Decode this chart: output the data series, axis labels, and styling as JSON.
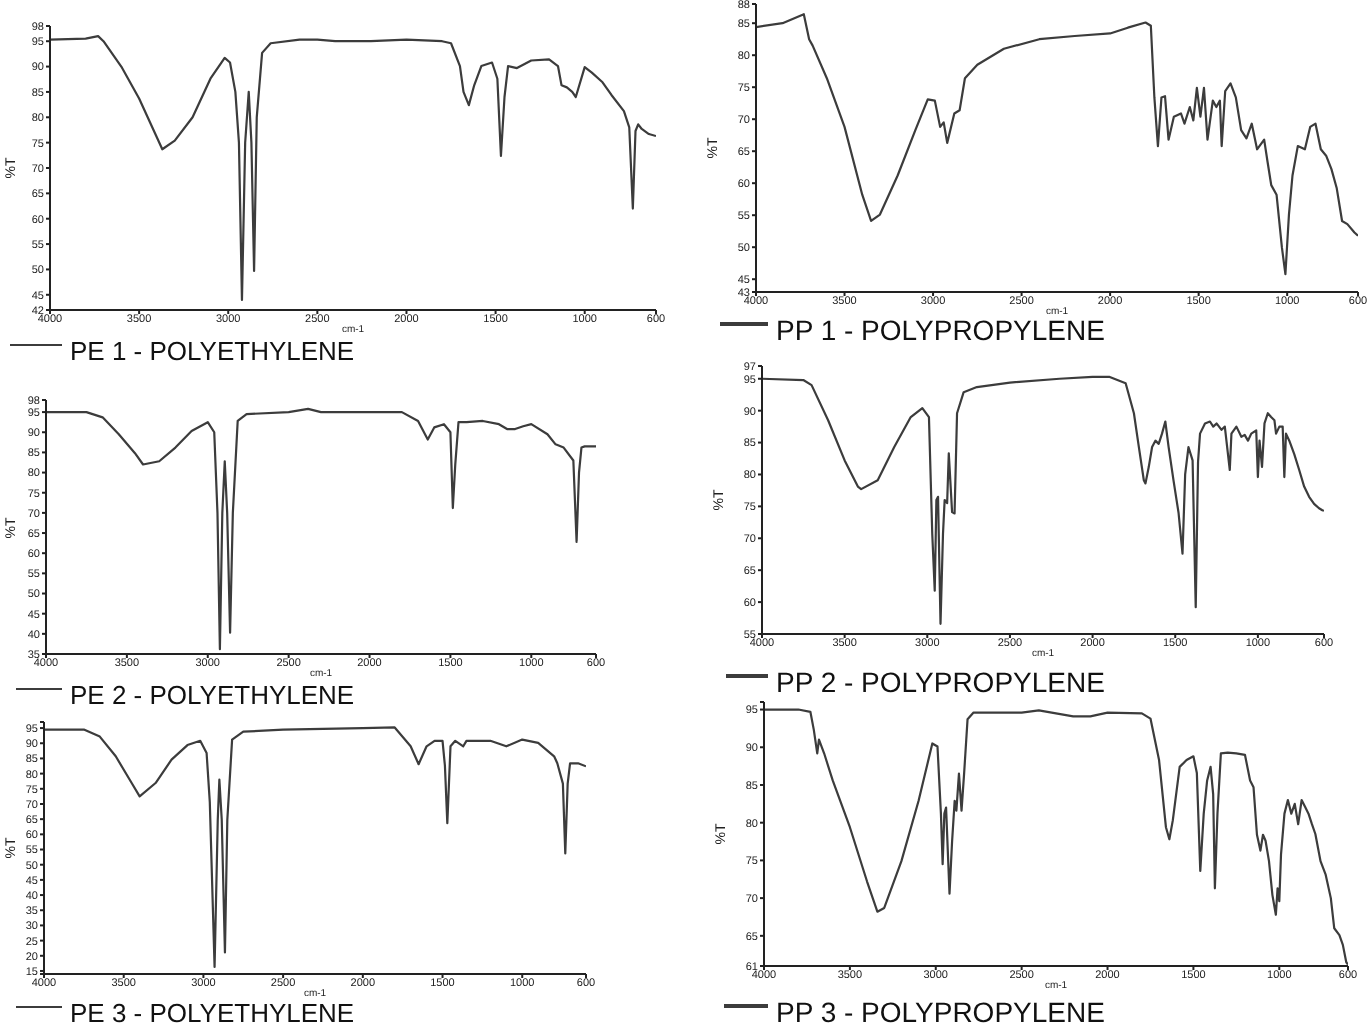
{
  "chart_data": [
    {
      "type": "line",
      "xlabel": "cm-1",
      "ylabel": "%T",
      "legend": "bottom",
      "xlim": [
        4000,
        600
      ],
      "xticks": [
        4000,
        3500,
        3000,
        2500,
        2000,
        1500,
        1000,
        600
      ],
      "ylim": [
        42,
        98
      ],
      "yticks": [
        42,
        45,
        50,
        55,
        60,
        65,
        70,
        75,
        80,
        85,
        90,
        95,
        98
      ],
      "x": [
        4000,
        3800,
        3730,
        3700,
        3600,
        3500,
        3400,
        3370,
        3300,
        3200,
        3100,
        3020,
        2990,
        2960,
        2940,
        2923,
        2905,
        2885,
        2870,
        2855,
        2840,
        2810,
        2762,
        2600,
        2500,
        2400,
        2200,
        2000,
        1800,
        1750,
        1700,
        1680,
        1650,
        1620,
        1580,
        1520,
        1490,
        1470,
        1450,
        1430,
        1380,
        1300,
        1200,
        1150,
        1130,
        1100,
        1070,
        1050,
        1000,
        960,
        900,
        850,
        780,
        750,
        730,
        715,
        700,
        680,
        640,
        600
      ],
      "series": [
        {
          "name": "PE 1 - POLYETHYLENE",
          "color": "#3c3c3c",
          "values": [
            95.3,
            95.5,
            96,
            95,
            90,
            83.7,
            76,
            73.7,
            75.4,
            80,
            87.6,
            91.7,
            90.8,
            85,
            75,
            44,
            75,
            85,
            75,
            49.7,
            80,
            92.7,
            94.6,
            95.3,
            95.3,
            95,
            95,
            95.3,
            95,
            94.6,
            90.1,
            85,
            82.4,
            86.3,
            90.1,
            90.8,
            87.6,
            72.4,
            84,
            90.1,
            89.7,
            91.2,
            91.4,
            90.1,
            86.3,
            85.9,
            85,
            84,
            89.9,
            88.8,
            86.9,
            84.4,
            81.2,
            78,
            62,
            77.3,
            78.6,
            77.7,
            76.7,
            76.3
          ]
        }
      ]
    },
    {
      "type": "line",
      "xlabel": "cm-1",
      "ylabel": "%T",
      "legend": "bottom",
      "xlim": [
        4000,
        600
      ],
      "xticks": [
        4000,
        3500,
        3000,
        2500,
        2000,
        1500,
        1000,
        600
      ],
      "ylim": [
        43,
        88
      ],
      "yticks": [
        43,
        45,
        50,
        55,
        60,
        65,
        70,
        75,
        80,
        85,
        88
      ],
      "x": [
        4000,
        3850,
        3730,
        3700,
        3680,
        3600,
        3500,
        3400,
        3350,
        3300,
        3200,
        3100,
        3030,
        2990,
        2960,
        2940,
        2920,
        2880,
        2850,
        2820,
        2750,
        2600,
        2400,
        2200,
        2000,
        1900,
        1800,
        1770,
        1750,
        1730,
        1710,
        1690,
        1670,
        1640,
        1600,
        1580,
        1550,
        1530,
        1510,
        1490,
        1470,
        1450,
        1420,
        1400,
        1380,
        1370,
        1350,
        1320,
        1290,
        1260,
        1230,
        1200,
        1170,
        1130,
        1110,
        1090,
        1060,
        1030,
        1010,
        990,
        970,
        940,
        900,
        870,
        840,
        810,
        780,
        750,
        720,
        690,
        660,
        620,
        600
      ],
      "series": [
        {
          "name": "PP 1 - POLYPROPYLENE",
          "color": "#3c3c3c",
          "values": [
            84.4,
            85,
            86.4,
            82.5,
            81.5,
            76.4,
            68.8,
            58.2,
            54.1,
            55.1,
            61.2,
            68.3,
            73.1,
            72.9,
            68.8,
            69.5,
            66.3,
            70.9,
            71.4,
            76.4,
            78.5,
            81,
            82.5,
            83,
            83.4,
            84.3,
            85.1,
            84.6,
            73.4,
            65.8,
            73.4,
            73.6,
            66.8,
            70.4,
            70.9,
            69.3,
            71.9,
            69.8,
            74.9,
            70.4,
            74.9,
            66.8,
            72.9,
            71.9,
            72.9,
            65.8,
            74.4,
            75.6,
            73.4,
            68.3,
            67,
            69.3,
            65.3,
            66.8,
            63.2,
            59.7,
            58.2,
            50,
            45.8,
            55.1,
            61.2,
            65.8,
            65.3,
            68.8,
            69.3,
            65.3,
            64.3,
            62.2,
            59.2,
            54.1,
            53.6,
            52.3,
            51.8
          ]
        }
      ]
    },
    {
      "type": "line",
      "xlabel": "cm-1",
      "ylabel": "%T",
      "legend": "bottom",
      "xlim": [
        4000,
        600
      ],
      "xticks": [
        4000,
        3500,
        3000,
        2500,
        2000,
        1500,
        1000,
        600
      ],
      "ylim": [
        35,
        98
      ],
      "yticks": [
        35,
        40,
        45,
        50,
        55,
        60,
        65,
        70,
        75,
        80,
        85,
        90,
        95,
        98
      ],
      "x": [
        4000,
        3750,
        3650,
        3550,
        3450,
        3400,
        3300,
        3200,
        3100,
        3000,
        2960,
        2940,
        2925,
        2910,
        2895,
        2880,
        2862,
        2845,
        2815,
        2760,
        2500,
        2380,
        2300,
        2000,
        1800,
        1700,
        1640,
        1600,
        1540,
        1500,
        1485,
        1470,
        1450,
        1400,
        1300,
        1200,
        1150,
        1100,
        1050,
        1000,
        900,
        850,
        800,
        740,
        720,
        705,
        690,
        670,
        600
      ],
      "series": [
        {
          "name": "PE 2 - POLYETHYLENE",
          "color": "#3c3c3c",
          "values": [
            95,
            95,
            93.7,
            89.5,
            84.8,
            82,
            82.8,
            86.2,
            90.3,
            92.5,
            90,
            70,
            36.2,
            70,
            82.8,
            70,
            40.3,
            70,
            92.8,
            94.5,
            95,
            95.8,
            95,
            95,
            95,
            92.8,
            88.2,
            91.2,
            92,
            90,
            71.2,
            82,
            92.5,
            92.5,
            92.8,
            92,
            90.8,
            90.8,
            91.5,
            92,
            89.5,
            87,
            86.2,
            83,
            62.8,
            80,
            86.2,
            86.5,
            86.5
          ]
        }
      ]
    },
    {
      "type": "line",
      "xlabel": "cm-1",
      "ylabel": "%T",
      "legend": "bottom",
      "xlim": [
        4000,
        600
      ],
      "xticks": [
        4000,
        3500,
        3000,
        2500,
        2000,
        1500,
        1000,
        600
      ],
      "ylim": [
        55,
        97
      ],
      "yticks": [
        55,
        60,
        65,
        70,
        75,
        80,
        85,
        90,
        95,
        97
      ],
      "x": [
        4000,
        3750,
        3700,
        3600,
        3500,
        3420,
        3400,
        3300,
        3200,
        3100,
        3030,
        2990,
        2970,
        2955,
        2945,
        2935,
        2920,
        2905,
        2895,
        2880,
        2870,
        2850,
        2835,
        2820,
        2780,
        2700,
        2500,
        2200,
        2000,
        1900,
        1800,
        1750,
        1720,
        1690,
        1680,
        1660,
        1640,
        1620,
        1600,
        1580,
        1560,
        1540,
        1510,
        1480,
        1456,
        1440,
        1420,
        1395,
        1376,
        1362,
        1350,
        1320,
        1290,
        1270,
        1250,
        1220,
        1200,
        1170,
        1160,
        1130,
        1100,
        1080,
        1060,
        1040,
        1010,
        1000,
        990,
        975,
        960,
        940,
        920,
        900,
        890,
        870,
        850,
        840,
        830,
        810,
        780,
        750,
        720,
        690,
        660,
        630,
        610,
        600
      ],
      "series": [
        {
          "name": "PP 2 - POLYPROPYLENE",
          "color": "#3c3c3c",
          "values": [
            95,
            94.8,
            94,
            88.5,
            82.2,
            78.1,
            77.7,
            79.1,
            84.3,
            89,
            90.4,
            89,
            70.7,
            61.8,
            76,
            76.5,
            56.6,
            70.7,
            76,
            75.5,
            83.3,
            74.1,
            73.9,
            89.6,
            92.9,
            93.7,
            94.4,
            95,
            95.3,
            95.3,
            94.3,
            89.6,
            84.3,
            79.1,
            78.6,
            81.2,
            84.3,
            85.3,
            84.8,
            86.4,
            88.3,
            84.3,
            79,
            74,
            67.6,
            80,
            84.3,
            82.2,
            59.2,
            82,
            86.4,
            88,
            88.3,
            87.5,
            88,
            87,
            87.5,
            80.7,
            86.4,
            87.5,
            85.9,
            86.2,
            85.3,
            86.4,
            86.9,
            79.6,
            85.3,
            81.2,
            88,
            89.6,
            89,
            88.5,
            86.4,
            87.5,
            87.5,
            79.6,
            86.4,
            85.3,
            83.2,
            80.7,
            78.1,
            76.5,
            75.4,
            74.7,
            74.4,
            74.3
          ]
        }
      ]
    },
    {
      "type": "line",
      "xlabel": "cm-1",
      "ylabel": "%T",
      "legend": "bottom",
      "xlim": [
        4000,
        600
      ],
      "xticks": [
        4000,
        3500,
        3000,
        2500,
        2000,
        1500,
        1000,
        600
      ],
      "ylim": [
        14,
        97
      ],
      "yticks": [
        {
          "value": 14,
          "label": null
        },
        15,
        20,
        25,
        30,
        35,
        40,
        45,
        50,
        55,
        60,
        65,
        70,
        75,
        80,
        85,
        90,
        95,
        {
          "value": 97,
          "label": null
        }
      ],
      "x": [
        4000,
        3750,
        3650,
        3550,
        3450,
        3400,
        3300,
        3200,
        3100,
        3020,
        2980,
        2960,
        2930,
        2910,
        2900,
        2885,
        2865,
        2850,
        2820,
        2750,
        2500,
        2000,
        1800,
        1700,
        1650,
        1600,
        1550,
        1500,
        1485,
        1470,
        1455,
        1450,
        1420,
        1370,
        1350,
        1200,
        1100,
        1000,
        900,
        800,
        780,
        745,
        730,
        715,
        700,
        650,
        600
      ],
      "series": [
        {
          "name": "PE 3 - POLYETHYLENE",
          "color": "#3c3c3c",
          "values": [
            94.5,
            94.5,
            92.2,
            85.7,
            76.9,
            72.5,
            76.9,
            84.6,
            89.4,
            90.8,
            86.8,
            70.7,
            16.3,
            64.8,
            78,
            64.8,
            21.1,
            64.8,
            91.2,
            93.8,
            94.5,
            95,
            95.2,
            89,
            83.1,
            89,
            90.8,
            90.8,
            82.6,
            63.7,
            82.6,
            89,
            90.8,
            89,
            90.8,
            90.8,
            89,
            91.2,
            90.1,
            85.7,
            83.4,
            76.7,
            53.7,
            76.7,
            83.4,
            83.4,
            82.4
          ]
        }
      ]
    },
    {
      "type": "line",
      "xlabel": "cm-1",
      "ylabel": "%T",
      "legend": "bottom",
      "xlim": [
        4000,
        600
      ],
      "xticks": [
        4000,
        3500,
        3000,
        2500,
        2000,
        1500,
        1000,
        600
      ],
      "ylim": [
        61,
        96
      ],
      "yticks": [
        61,
        65,
        70,
        75,
        80,
        85,
        90,
        95,
        {
          "value": 96,
          "label": null
        }
      ],
      "x": [
        4000,
        3800,
        3730,
        3710,
        3690,
        3680,
        3650,
        3600,
        3500,
        3400,
        3340,
        3300,
        3200,
        3100,
        3020,
        2990,
        2970,
        2960,
        2950,
        2940,
        2920,
        2905,
        2890,
        2880,
        2865,
        2850,
        2835,
        2815,
        2780,
        2500,
        2400,
        2200,
        2100,
        2000,
        1800,
        1750,
        1700,
        1660,
        1640,
        1620,
        1580,
        1540,
        1500,
        1480,
        1460,
        1440,
        1420,
        1400,
        1385,
        1375,
        1360,
        1340,
        1300,
        1250,
        1200,
        1170,
        1150,
        1130,
        1110,
        1095,
        1080,
        1060,
        1040,
        1020,
        1010,
        1000,
        990,
        970,
        950,
        930,
        910,
        890,
        870,
        850,
        830,
        810,
        790,
        760,
        730,
        700,
        680,
        650,
        630,
        610,
        600
      ],
      "series": [
        {
          "name": "PP 3 - POLYPROPYLENE",
          "color": "#3c3c3c",
          "values": [
            95,
            95,
            94.7,
            92.3,
            89.2,
            91,
            89.2,
            85.6,
            79.4,
            72.2,
            68.2,
            68.7,
            74.9,
            82.9,
            90.5,
            90.1,
            81.2,
            74.5,
            81.2,
            82,
            70.6,
            77.5,
            82.9,
            81.6,
            86.5,
            81.6,
            86.5,
            93.7,
            94.6,
            94.6,
            94.9,
            94.1,
            94.1,
            94.6,
            94.5,
            93.8,
            88.3,
            79.4,
            77.8,
            80.3,
            87.4,
            88.3,
            88.8,
            86.6,
            73.6,
            81.2,
            85.6,
            87.4,
            83.8,
            71.3,
            81.2,
            89.2,
            89.3,
            89.2,
            89,
            85.6,
            84.7,
            78.4,
            76.3,
            78.4,
            77.6,
            74.9,
            70.4,
            67.8,
            71.3,
            69.6,
            75.8,
            81.2,
            83,
            81.2,
            82.5,
            79.8,
            83,
            82.1,
            81.2,
            79.8,
            78.5,
            74.9,
            73.1,
            70,
            66,
            65.1,
            63.8,
            61.5,
            61.2
          ]
        }
      ]
    }
  ]
}
